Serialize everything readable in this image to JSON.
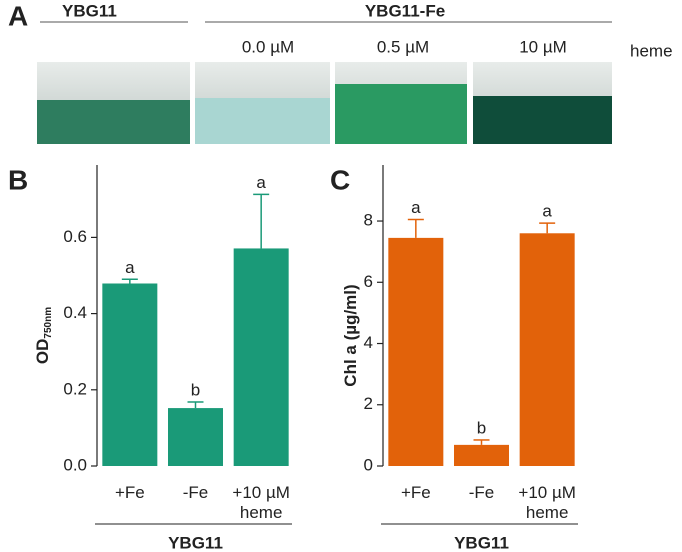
{
  "panel_a": {
    "letter": "A",
    "group_1": "YBG11",
    "group_2": "YBG11-Fe",
    "conditions": [
      "0.0 µM",
      "0.5 µM",
      "10 µM"
    ],
    "condition_unit": "heme"
  },
  "chart_data": [
    {
      "type": "bar",
      "panel": "B",
      "y_label": "OD",
      "y_label_subscript": "750nm",
      "group_label": "YBG11",
      "categories": [
        "+Fe",
        "-Fe",
        "+10 µM heme"
      ],
      "values": [
        0.479,
        0.152,
        0.571
      ],
      "errors": [
        0.011,
        0.016,
        0.142
      ],
      "letters": [
        "a",
        "b",
        "a"
      ],
      "color": "#1a9a78",
      "ylim": [
        0,
        0.79
      ],
      "yticks": [
        {
          "value": 0,
          "label": "0.0"
        },
        0.2,
        0.4,
        0.6
      ]
    },
    {
      "type": "bar",
      "panel": "C",
      "y_label": "Chl a (µg/ml)",
      "group_label": "YBG11",
      "categories": [
        "+Fe",
        "-Fe",
        "+10 µM heme"
      ],
      "values": [
        7.45,
        0.69,
        7.6
      ],
      "errors": [
        0.6,
        0.16,
        0.33
      ],
      "letters": [
        "a",
        "b",
        "a"
      ],
      "color": "#e2620a",
      "ylim": [
        0,
        9.83
      ],
      "yticks": [
        0,
        2,
        4,
        6,
        8
      ]
    }
  ]
}
